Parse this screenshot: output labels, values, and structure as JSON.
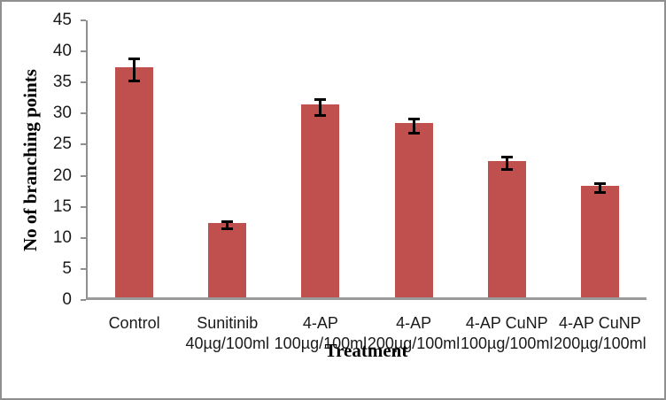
{
  "chart_data": {
    "type": "bar",
    "title": "",
    "xlabel": "Treatment",
    "ylabel": "No of branching points",
    "ylim": [
      0,
      45
    ],
    "ytick_step": 5,
    "grid": false,
    "legend": false,
    "categories": [
      {
        "line1": "Control",
        "line2": ""
      },
      {
        "line1": "Sunitinib",
        "line2": "40µg/100ml"
      },
      {
        "line1": "4-AP",
        "line2": "100µg/100ml"
      },
      {
        "line1": "4-AP",
        "line2": "200µg/100ml"
      },
      {
        "line1": "4-AP CuNP",
        "line2": "100µg/100ml"
      },
      {
        "line1": "4-AP CuNP",
        "line2": "200µg/100ml"
      }
    ],
    "values": [
      37,
      12,
      31,
      28,
      22,
      18
    ],
    "errors": [
      2,
      0.8,
      1.5,
      1.4,
      1.2,
      0.9
    ],
    "colors": {
      "bar_fill": "#C0504D",
      "error_bar": "#000000",
      "axis_line": "#8f8f8f",
      "frame_border": "#8f8f8f",
      "text": "#1a1a1a",
      "background": "#ffffff"
    }
  }
}
